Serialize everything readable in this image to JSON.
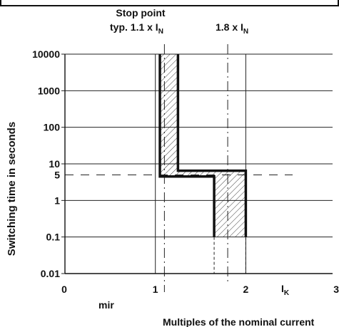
{
  "chart_data": {
    "type": "line",
    "title": "",
    "xlabel": "Multiples of the nominal current",
    "ylabel": "Switching time in seconds",
    "x_scale": "linear",
    "y_scale": "log",
    "xlim": [
      0,
      3
    ],
    "ylim": [
      0.01,
      10000
    ],
    "x_ticks": [
      "0",
      "1",
      "2",
      "3"
    ],
    "y_ticks": [
      "10000",
      "1000",
      "100",
      "10",
      "5",
      "1",
      "0.1",
      "0.01"
    ],
    "x_ticks_values": [
      0,
      1,
      2,
      3
    ],
    "y_ticks_values": [
      10000,
      1000,
      100,
      10,
      5,
      1,
      0.1,
      0.01
    ],
    "grid": true,
    "ik_label": "I",
    "ik_sub": "K",
    "min_label": "mir",
    "annotations": {
      "stop_point_line1": "Stop point",
      "stop_point_line2": "typ. 1.1 x I",
      "stop_point_sub": "N",
      "stop_point_x": 1.1,
      "one_eight_label": "1.8 x I",
      "one_eight_sub": "N",
      "one_eight_x": 1.8,
      "five_seconds_level": 5
    },
    "band": {
      "lower_boundary": [
        {
          "x": 1.05,
          "y": 10000
        },
        {
          "x": 1.05,
          "y": 4.5
        },
        {
          "x": 1.65,
          "y": 4.5
        },
        {
          "x": 1.65,
          "y": 0.1
        }
      ],
      "upper_boundary": [
        {
          "x": 1.25,
          "y": 10000
        },
        {
          "x": 1.25,
          "y": 6.5
        },
        {
          "x": 2.0,
          "y": 6.5
        },
        {
          "x": 2.0,
          "y": 0.1
        }
      ]
    }
  }
}
